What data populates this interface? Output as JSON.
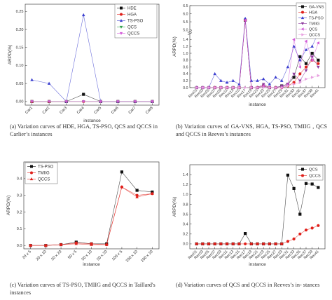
{
  "colors": {
    "black": "#111111",
    "red": "#e0201b",
    "blue": "#3b3fcf",
    "green": "#2fa14a",
    "purple": "#8e3a9e",
    "magenta": "#d35bd8",
    "pink": "#e8a0e0",
    "gray": "#9a9a9a"
  },
  "panels": [
    {
      "caption": "(a)  Variation curves of HDE, HGA, TS-PSO, QCS and QCCS in Carlier’s instances",
      "chart_data": {
        "type": "line",
        "xlabel": "instance",
        "ylabel": "ARPD(%)",
        "categories": [
          "Car1",
          "Car2",
          "Car3",
          "Car4",
          "Car5",
          "Car6",
          "Car7",
          "Car8"
        ],
        "ylim": [
          -0.01,
          0.27
        ],
        "yticks": [
          0.0,
          0.05,
          0.1,
          0.15,
          0.2,
          0.25
        ],
        "ytick_labels": [
          "0.00",
          "0.05",
          "0.10",
          "0.15",
          "0.20",
          "0.25"
        ],
        "legend_position": "top-right",
        "series": [
          {
            "name": "HDE",
            "color": "#111111",
            "marker": "square",
            "values": [
              0,
              0,
              0,
              0.02,
              0,
              0,
              0,
              0
            ]
          },
          {
            "name": "HGA",
            "color": "#e0201b",
            "marker": "circle",
            "values": [
              0,
              0,
              0,
              0,
              0,
              0,
              0,
              0
            ]
          },
          {
            "name": "TS-PSO",
            "color": "#3b3fcf",
            "marker": "triangle-up",
            "values": [
              0.06,
              0.05,
              0,
              0.24,
              0,
              0,
              0,
              0
            ]
          },
          {
            "name": "QCS",
            "color": "#2fa14a",
            "marker": "triangle-down",
            "values": [
              0,
              0,
              0,
              0,
              0,
              0,
              0,
              0
            ]
          },
          {
            "name": "QCCS",
            "color": "#d35bd8",
            "marker": "triangle-down",
            "values": [
              0,
              0,
              0,
              0,
              0,
              0,
              0,
              0
            ]
          }
        ]
      }
    },
    {
      "caption": "(b)  Variation  curves  of  GA-VNS,  HGA,  TS-PSO, TMIIG , QCS and QCCS in Reeves’s instances",
      "chart_data": {
        "type": "line",
        "xlabel": "instance",
        "ylabel": "ARPD(%)",
        "categories": [
          "Rec01",
          "Rec03",
          "Rec05",
          "Rec07",
          "Rec09",
          "Rec11",
          "Rec13",
          "Rec15",
          "Rec17",
          "Rec19",
          "Rec21",
          "Rec23",
          "Rec25",
          "Rec27",
          "Rec29",
          "Rec31",
          "Rec33",
          "Rec35",
          "Rec37",
          "Rec39",
          "Rec41"
        ],
        "broken_axis": true,
        "ylim_lower": [
          0,
          1.6
        ],
        "ylim_upper": [
          5.0,
          6.5
        ],
        "yticks": [
          0.0,
          0.2,
          0.4,
          0.6,
          0.8,
          1.0,
          1.2,
          1.4,
          5.0,
          5.5,
          6.0,
          6.5
        ],
        "ytick_labels": [
          "0.0",
          "0.2",
          "0.4",
          "0.6",
          "0.8",
          "1.0",
          "1.2",
          "1.4",
          "5.0",
          "5.5",
          "6.0",
          "6.5"
        ],
        "legend_position": "top-right",
        "series": [
          {
            "name": "GA-VNS",
            "color": "#111111",
            "marker": "square",
            "values": [
              0,
              0,
              0,
              0,
              0,
              0,
              0,
              0,
              5.6,
              0,
              0,
              0.05,
              0,
              0,
              0.05,
              0.1,
              0.3,
              0.9,
              0.7,
              1.0,
              0.8
            ]
          },
          {
            "name": "HGA",
            "color": "#e0201b",
            "marker": "circle",
            "values": [
              0,
              0,
              0,
              0,
              0,
              0,
              0,
              0,
              5.6,
              0,
              0,
              0.05,
              0,
              0,
              0,
              0.05,
              0.15,
              0.4,
              0.6,
              0.8,
              0.7
            ]
          },
          {
            "name": "TS-PSO",
            "color": "#3b3fcf",
            "marker": "triangle-up",
            "values": [
              0,
              0,
              0,
              0.4,
              0.2,
              0.15,
              0.2,
              0.1,
              5.7,
              0.2,
              0.2,
              0.25,
              0.1,
              0.3,
              0.2,
              0.6,
              1.2,
              0.8,
              1.1,
              1.2,
              1.6
            ]
          },
          {
            "name": "TMIIG",
            "color": "#8e3a9e",
            "marker": "triangle-down",
            "values": [
              0,
              0,
              0,
              0,
              0,
              0,
              0,
              0,
              5.6,
              0,
              0,
              0.1,
              0,
              0,
              0.05,
              0.1,
              0.4,
              0.2,
              0.5,
              0.9,
              0.6
            ]
          },
          {
            "name": "QCS",
            "color": "#d35bd8",
            "marker": "triangle-left",
            "values": [
              0,
              0,
              0,
              0,
              0,
              0,
              0,
              0,
              5.6,
              0,
              0,
              0.05,
              0,
              0,
              0,
              0.1,
              1.4,
              0.6,
              1.35,
              0.8,
              1.3
            ]
          },
          {
            "name": "QCCS",
            "color": "#e8a0e0",
            "marker": "triangle-right",
            "values": [
              0,
              0,
              0,
              0,
              0,
              0,
              0,
              0,
              0,
              0,
              0,
              0,
              0,
              0,
              0,
              0.05,
              0.1,
              0.15,
              0.25,
              0.3,
              0.35
            ]
          }
        ]
      }
    },
    {
      "caption": "(c)  Variation curves of TS-PSO, TMIIG and QCCS in Taillard's instances",
      "chart_data": {
        "type": "line",
        "xlabel": "instance",
        "ylabel": "ARPD(%)",
        "categories": [
          "20 x 5",
          "20 x 10",
          "20 x 20",
          "50 x 5",
          "50 x 10",
          "50 x 20",
          "100 x 5",
          "100 x 10",
          "100 x 20"
        ],
        "ylim": [
          -0.02,
          0.5
        ],
        "yticks": [
          0.0,
          0.1,
          0.2,
          0.3,
          0.4
        ],
        "ytick_labels": [
          "0.0",
          "0.1",
          "0.2",
          "0.3",
          "0.4"
        ],
        "legend_position": "top-left",
        "series": [
          {
            "name": "TS-PSO",
            "color": "#111111",
            "marker": "square",
            "values": [
              0,
              0,
              0.005,
              0.02,
              0.01,
              0.01,
              0.44,
              0.33,
              0.32
            ]
          },
          {
            "name": "TMIIG",
            "color": "#e0201b",
            "marker": "circle",
            "values": [
              0,
              0,
              0.005,
              0.015,
              0.01,
              0.005,
              0.35,
              0.3,
              0.31
            ]
          },
          {
            "name": "QCCS",
            "color": "#e0201b",
            "marker": "triangle-up",
            "values": [
              0,
              0,
              0.005,
              0.01,
              0.005,
              0.005,
              0.35,
              0.29,
              0.31
            ]
          }
        ]
      }
    },
    {
      "caption": "(d)  Variation curves of QCS and QCCS in Reeves’s in- stances",
      "chart_data": {
        "type": "line",
        "xlabel": "instance",
        "ylabel": "ARPD(%)",
        "categories": [
          "Rec01",
          "Rec03",
          "Rec05",
          "Rec07",
          "Rec09",
          "Rec11",
          "Rec13",
          "Rec15",
          "Rec17",
          "Rec19",
          "Rec21",
          "Rec23",
          "Rec25",
          "Rec27",
          "Rec29",
          "Rec31",
          "Rec33",
          "Rec35",
          "Rec37",
          "Rec39",
          "Rec41"
        ],
        "ylim": [
          -0.1,
          1.6
        ],
        "yticks": [
          0.0,
          0.2,
          0.4,
          0.6,
          0.8,
          1.0,
          1.2,
          1.4
        ],
        "ytick_labels": [
          "0.0",
          "0.2",
          "0.4",
          "0.6",
          "0.8",
          "1.0",
          "1.2",
          "1.4"
        ],
        "legend_position": "top-right",
        "series": [
          {
            "name": "QCS",
            "color": "#111111",
            "marker": "square",
            "values": [
              0,
              0,
              0,
              0,
              0,
              0,
              0,
              0,
              0.21,
              0,
              0,
              0,
              0,
              0,
              0,
              1.39,
              1.12,
              0.6,
              1.22,
              1.21,
              1.14
            ]
          },
          {
            "name": "QCCS",
            "color": "#e0201b",
            "marker": "circle",
            "values": [
              0,
              0,
              0,
              0,
              0,
              0,
              0,
              0,
              0,
              0,
              0,
              0,
              0,
              0,
              0,
              0.05,
              0.1,
              0.2,
              0.28,
              0.32,
              0.37
            ]
          }
        ]
      }
    }
  ]
}
